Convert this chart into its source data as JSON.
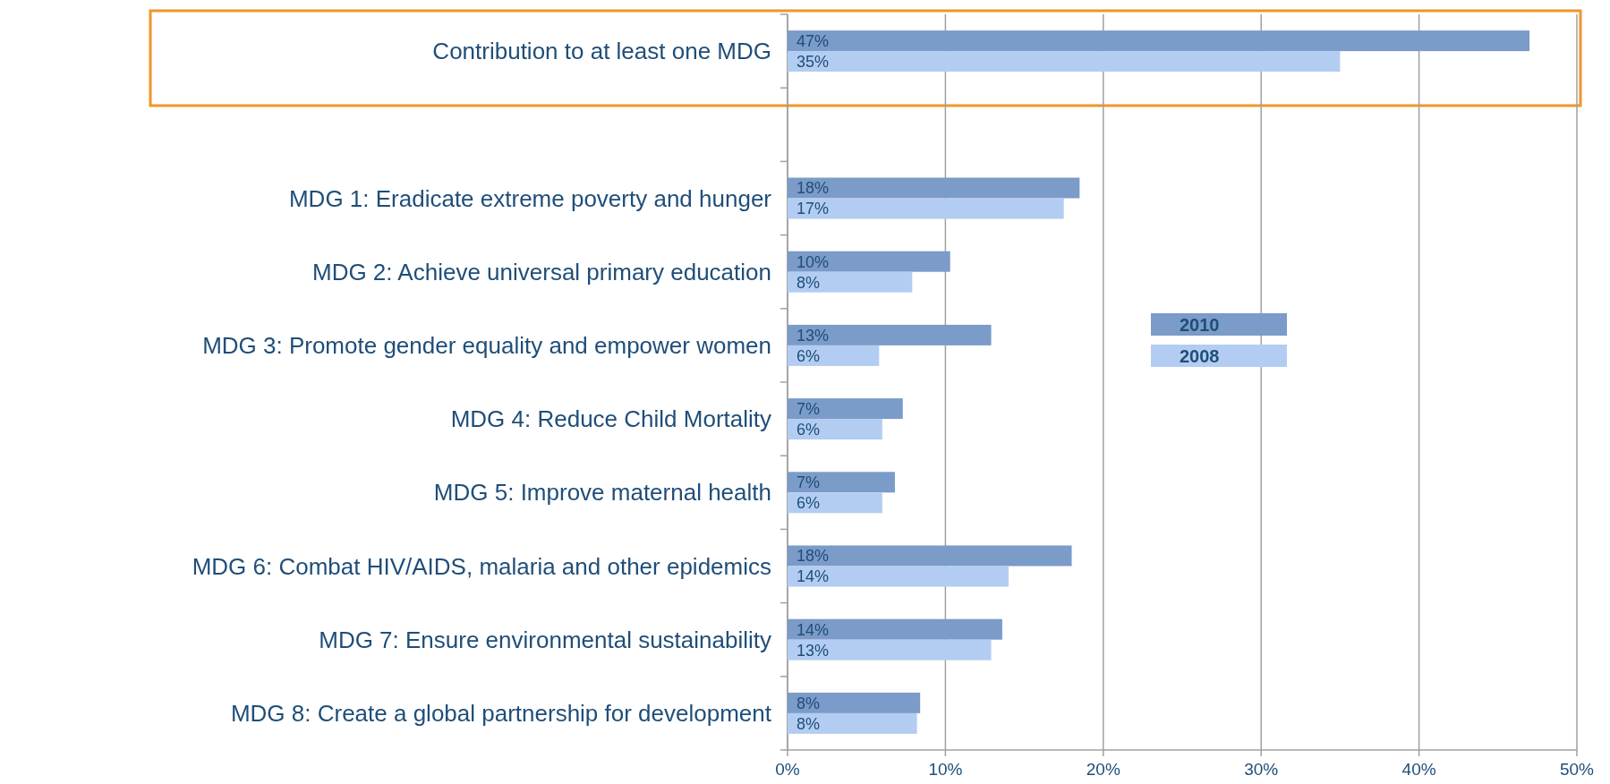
{
  "chart_data": {
    "type": "bar",
    "orientation": "horizontal",
    "categories": [
      "Contribution to at least one MDG",
      null,
      "MDG 1: Eradicate extreme poverty and hunger",
      "MDG 2: Achieve universal primary education",
      "MDG 3: Promote gender equality and empower women",
      "MDG 4: Reduce Child Mortality",
      "MDG 5: Improve maternal health",
      "MDG 6: Combat HIV/AIDS, malaria and other epidemics",
      "MDG 7: Ensure environmental sustainability",
      "MDG 8: Create a global partnership for development"
    ],
    "series": [
      {
        "name": "2010",
        "color": "#7b9bc8",
        "values": [
          47,
          null,
          18.5,
          10.3,
          12.9,
          7.3,
          6.8,
          18.0,
          13.6,
          8.4
        ],
        "value_labels": [
          "47%",
          null,
          "18%",
          "10%",
          "13%",
          "7%",
          "7%",
          "18%",
          "14%",
          "8%"
        ]
      },
      {
        "name": "2008",
        "color": "#b3cdf2",
        "values": [
          35,
          null,
          17.5,
          7.9,
          5.8,
          6.0,
          6.0,
          14.0,
          12.9,
          8.2
        ],
        "value_labels": [
          "35%",
          null,
          "17%",
          "8%",
          "6%",
          "6%",
          "6%",
          "14%",
          "13%",
          "8%"
        ]
      }
    ],
    "xlim": [
      0,
      50
    ],
    "xticks": [
      {
        "value": 0,
        "label": "0%"
      },
      {
        "value": 10,
        "label": "10%"
      },
      {
        "value": 20,
        "label": "20%"
      },
      {
        "value": 30,
        "label": "30%"
      },
      {
        "value": 40,
        "label": "40%"
      },
      {
        "value": 50,
        "label": "50%"
      }
    ],
    "grid": "x",
    "legend": "right"
  }
}
